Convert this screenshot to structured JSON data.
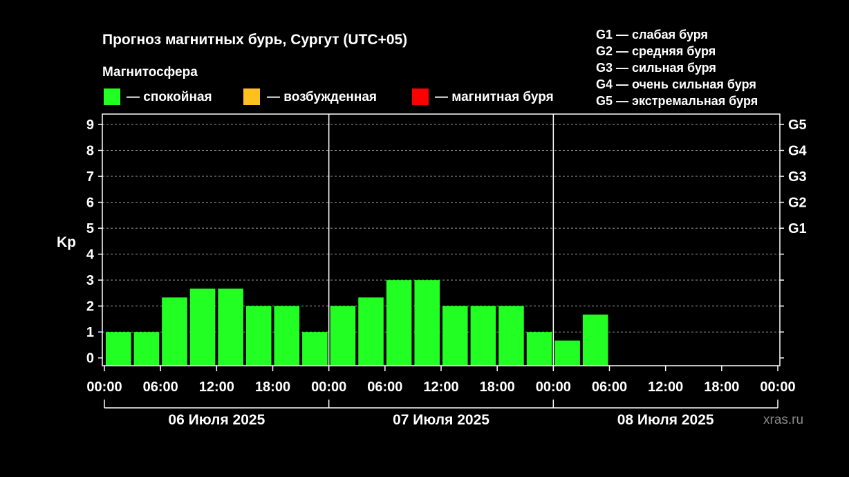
{
  "title": "Прогноз магнитных бурь, Сургут (UTC+05)",
  "subtitle": "Магнитосфера",
  "legend": [
    {
      "label": "— спокойная",
      "color": "#22ff22"
    },
    {
      "label": "— возбужденная",
      "color": "#ffc020"
    },
    {
      "label": "— магнитная буря",
      "color": "#ff0000"
    }
  ],
  "g_legend": [
    "G1 — слабая буря",
    "G2 — средняя буря",
    "G3 — сильная буря",
    "G4 — очень сильная буря",
    "G5 — экстремальная буря"
  ],
  "watermark": "xras.ru",
  "chart_data": {
    "type": "bar",
    "ylabel": "Kp",
    "ylim": [
      -0.3,
      9.4
    ],
    "yticks": [
      "0",
      "1",
      "2",
      "3",
      "4",
      "5",
      "6",
      "7",
      "8",
      "9"
    ],
    "g_ticks": [
      {
        "label": "G1",
        "value": 5
      },
      {
        "label": "G2",
        "value": 6
      },
      {
        "label": "G3",
        "value": 7
      },
      {
        "label": "G4",
        "value": 8
      },
      {
        "label": "G5",
        "value": 9
      }
    ],
    "x_ticks": [
      "00:00",
      "06:00",
      "12:00",
      "18:00",
      "00:00",
      "06:00",
      "12:00",
      "18:00",
      "00:00",
      "06:00",
      "12:00",
      "18:00",
      "00:00"
    ],
    "days": [
      "06 Июля 2025",
      "07 Июля 2025",
      "08 Июля 2025"
    ],
    "interval_hours": 3,
    "values": [
      1.0,
      1.0,
      2.33,
      2.67,
      2.67,
      2.0,
      2.0,
      1.0,
      2.0,
      2.33,
      3.0,
      3.0,
      2.0,
      2.0,
      2.0,
      1.0,
      0.67,
      1.67
    ],
    "bar_color": "#22ff22",
    "grid": true
  }
}
